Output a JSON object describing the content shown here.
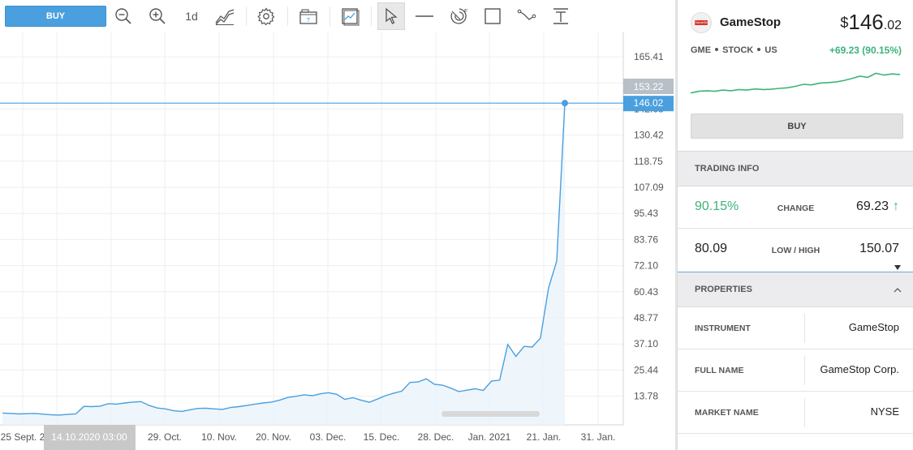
{
  "toolbar": {
    "buy_label": "BUY",
    "interval_label": "1d",
    "icons": [
      "zoom-out-icon",
      "zoom-in-icon",
      "interval",
      "chart-type-icon",
      "settings-icon",
      "template-icon",
      "indicators-icon",
      "cursor-icon",
      "horizontal-line-icon",
      "fibonacci-icon",
      "rectangle-icon",
      "trend-line-icon",
      "text-icon"
    ]
  },
  "chart_data": {
    "type": "area",
    "y_ticks": [
      "165.41",
      "153.22",
      "142.08",
      "130.42",
      "118.75",
      "107.09",
      "95.43",
      "83.76",
      "72.10",
      "60.43",
      "48.77",
      "37.10",
      "25.44",
      "13.78"
    ],
    "x_ticks": [
      "25 Sept. 2",
      "29. Oct.",
      "10. Nov.",
      "20. Nov.",
      "03. Dec.",
      "15. Dec.",
      "28. Dec.",
      "Jan. 2021",
      "21. Jan.",
      "31. Jan."
    ],
    "crosshair_x_label": "14.10.2020 03:00",
    "current_price_label": "146.02",
    "high_label": "153.22",
    "series": [
      {
        "values": [
          10.2,
          10.0,
          9.8,
          9.9,
          10.0,
          9.7,
          9.4,
          9.3,
          9.6,
          9.8,
          13.1,
          13.0,
          13.2,
          14.3,
          14.1,
          14.6,
          15.0,
          15.2,
          13.5,
          12.4,
          12.0,
          11.2,
          10.9,
          11.6,
          12.2,
          12.3,
          12.0,
          11.8,
          12.6,
          13.0,
          13.5,
          14.1,
          14.6,
          15.0,
          15.8,
          17.0,
          17.5,
          18.2,
          17.8,
          18.6,
          19.1,
          18.4,
          16.2,
          16.9,
          15.8,
          14.9,
          16.3,
          17.8,
          18.9,
          19.8,
          23.6,
          23.8,
          25.2,
          22.8,
          22.4,
          21.1,
          19.6,
          20.2,
          20.8,
          20.1,
          24.2,
          24.6,
          40.2,
          35.0,
          39.4,
          39.1,
          43.0,
          65.0,
          76.8,
          146.02
        ]
      }
    ],
    "ylim": [
      5,
      177
    ]
  },
  "instrument": {
    "name": "GameStop",
    "logo_text": "GameStop",
    "price_currency": "$",
    "price_int": "146",
    "price_dec": ".02",
    "meta": [
      "GME",
      "STOCK",
      "US"
    ],
    "change_text": "+69.23 (90.15%)",
    "spark": [
      0.12,
      0.18,
      0.2,
      0.18,
      0.22,
      0.2,
      0.24,
      0.22,
      0.26,
      0.24,
      0.25,
      0.28,
      0.3,
      0.35,
      0.42,
      0.4,
      0.46,
      0.48,
      0.5,
      0.55,
      0.62,
      0.7,
      0.66,
      0.8,
      0.74,
      0.78,
      0.76
    ],
    "buy_label": "BUY"
  },
  "trading_info": {
    "title": "TRADING INFO",
    "change_pct": "90.15%",
    "change_label": "CHANGE",
    "change_value": "69.23",
    "low": "80.09",
    "lowhigh_label": "LOW / HIGH",
    "high": "150.07"
  },
  "properties": {
    "title": "PROPERTIES",
    "rows": [
      {
        "label": "INSTRUMENT",
        "value": "GameStop"
      },
      {
        "label": "FULL NAME",
        "value": "GameStop Corp."
      },
      {
        "label": "MARKET NAME",
        "value": "NYSE"
      }
    ]
  },
  "colors": {
    "accent": "#4a9fde",
    "line": "#4a9fde",
    "area": "#eaf4fb",
    "green": "#3db37a"
  }
}
